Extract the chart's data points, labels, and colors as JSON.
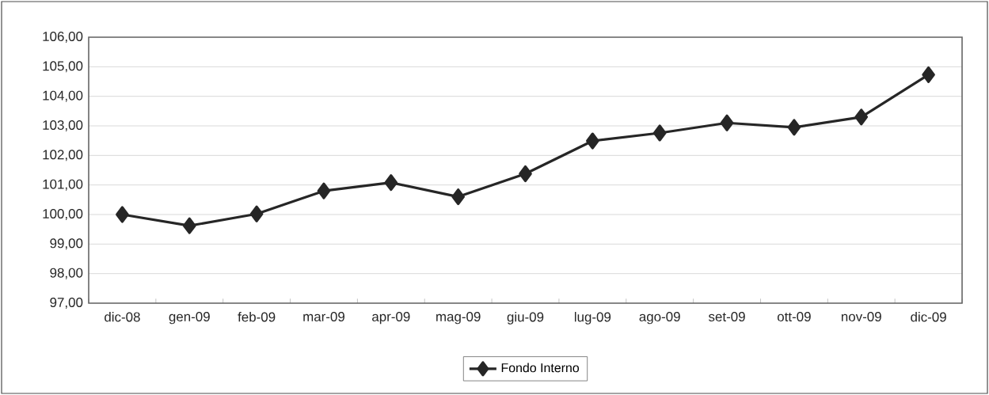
{
  "chart_data": {
    "type": "line",
    "categories": [
      "dic-08",
      "gen-09",
      "feb-09",
      "mar-09",
      "apr-09",
      "mag-09",
      "giu-09",
      "lug-09",
      "ago-09",
      "set-09",
      "ott-09",
      "nov-09",
      "dic-09"
    ],
    "series": [
      {
        "name": "Fondo Interno",
        "color": "#262626",
        "values": [
          100.0,
          99.62,
          100.02,
          100.8,
          101.08,
          100.6,
          101.38,
          102.49,
          102.76,
          103.1,
          102.95,
          103.3,
          104.73
        ]
      }
    ],
    "ylim": [
      97,
      106
    ],
    "yticks": [
      {
        "value": 97,
        "label": "97,00"
      },
      {
        "value": 98,
        "label": "98,00"
      },
      {
        "value": 99,
        "label": "99,00"
      },
      {
        "value": 100,
        "label": "100,00"
      },
      {
        "value": 101,
        "label": "101,00"
      },
      {
        "value": 102,
        "label": "102,00"
      },
      {
        "value": 103,
        "label": "103,00"
      },
      {
        "value": 104,
        "label": "104,00"
      },
      {
        "value": 105,
        "label": "105,00"
      },
      {
        "value": 106,
        "label": "106,00"
      }
    ],
    "grid": "y",
    "legend": "bottom",
    "marker": "diamond",
    "line_style": "solid"
  }
}
